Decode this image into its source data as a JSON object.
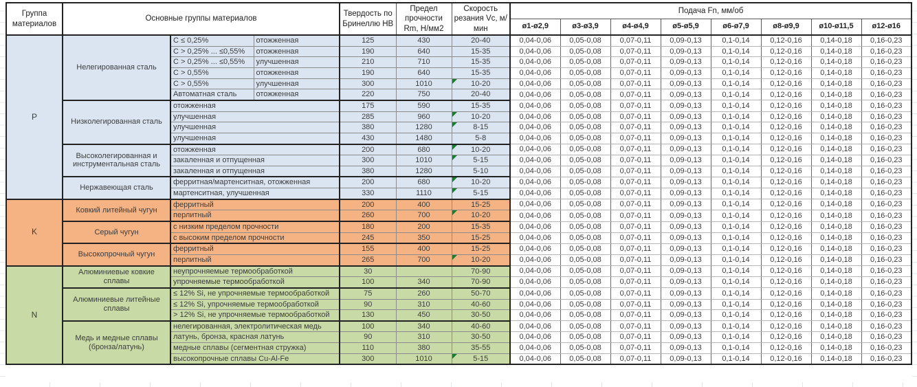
{
  "colors": {
    "group_p": "#dbe5f1",
    "group_k": "#f5b283",
    "group_n": "#c8daa5",
    "flag_triangle": "#1e7b34"
  },
  "header": {
    "col_group": "Группа материалов",
    "col_main_groups": "Основные группы материалов",
    "col_hardness": "Твердость по Бринеллю HB",
    "col_strength": "Предел прочности Rm, Н/мм2",
    "col_speed": "Скорость резания Vc, м/мин",
    "col_feed": "Подача Fn, мм/об",
    "feed_diameters": [
      "ø1-ø2,9",
      "ø3-ø3,9",
      "ø4-ø4,9",
      "ø5-ø5,9",
      "ø6-ø7,9",
      "ø8-ø9,9",
      "ø10-ø11,5",
      "ø12-ø16"
    ]
  },
  "feed_values": [
    "0,04-0,06",
    "0,05-0,08",
    "0,07-0,11",
    "0,09-0,13",
    "0,1-0,14",
    "0,12-0,16",
    "0,14-0,18",
    "0,16-0,23"
  ],
  "groups": [
    {
      "code": "P",
      "subgroups": [
        {
          "name": "Нелегированная сталь"
        },
        {
          "name": "Низколегированная сталь"
        },
        {
          "name": "Высоколегированная и инструментальная сталь"
        },
        {
          "name": "Нержавеющая сталь"
        }
      ]
    },
    {
      "code": "K",
      "subgroups": [
        {
          "name": "Ковкий литейный чугун"
        },
        {
          "name": "Серый чугун"
        },
        {
          "name": "Высокопрочный чугун"
        }
      ]
    },
    {
      "code": "N",
      "subgroups": [
        {
          "name": "Алюминиевые ковкие сплавы"
        },
        {
          "name": "Алюминиевые литейные сплавы"
        },
        {
          "name": "Медь и медные сплавы (бронза/латунь)"
        }
      ]
    }
  ],
  "rows": [
    {
      "c1": "C ≤ 0,25%",
      "c2": "отожженная",
      "hb": "125",
      "rm": "430",
      "vc": "20-40",
      "flag": false
    },
    {
      "c1": "C > 0,25% ... ≤0,55%",
      "c2": "отожженная",
      "hb": "190",
      "rm": "640",
      "vc": "15-35",
      "flag": false
    },
    {
      "c1": "C > 0,25% ... ≤0,55%",
      "c2": "улучшенная",
      "hb": "210",
      "rm": "710",
      "vc": "15-35",
      "flag": false
    },
    {
      "c1": "C > 0,55%",
      "c2": "отожженная",
      "hb": "190",
      "rm": "640",
      "vc": "15-35",
      "flag": false
    },
    {
      "c1": "C > 0,55%",
      "c2": "улучшенная",
      "hb": "300",
      "rm": "1010",
      "vc": "10-20",
      "flag": true
    },
    {
      "c1": "Автоматная сталь",
      "c2": "отожженная",
      "hb": "220",
      "rm": "750",
      "vc": "20-40",
      "flag": false
    },
    {
      "desc": "отожженная",
      "hb": "175",
      "rm": "590",
      "vc": "15-35",
      "flag": false
    },
    {
      "desc": "улучшенная",
      "hb": "285",
      "rm": "960",
      "vc": "10-20",
      "flag": true
    },
    {
      "desc": "улучшенная",
      "hb": "380",
      "rm": "1280",
      "vc": "8-15",
      "flag": true
    },
    {
      "desc": "улучшенная",
      "hb": "430",
      "rm": "1480",
      "vc": "5-8",
      "flag": false
    },
    {
      "desc": "отожженная",
      "hb": "200",
      "rm": "680",
      "vc": "10-20",
      "flag": true
    },
    {
      "desc": "закаленная и отпущенная",
      "hb": "300",
      "rm": "1010",
      "vc": "5-15",
      "flag": true
    },
    {
      "desc": "закаленная и отпущенная",
      "hb": "380",
      "rm": "1280",
      "vc": "5-10",
      "flag": false
    },
    {
      "desc": "ферритная/мартенситная, отожженная",
      "hb": "200",
      "rm": "680",
      "vc": "10-20",
      "flag": true
    },
    {
      "desc": "мартенситная, улучшенная",
      "hb": "330",
      "rm": "1110",
      "vc": "5-15",
      "flag": true
    },
    {
      "desc": "ферритный",
      "hb": "200",
      "rm": "400",
      "vc": "15-25",
      "flag": false
    },
    {
      "desc": "перлитный",
      "hb": "260",
      "rm": "700",
      "vc": "10-20",
      "flag": true
    },
    {
      "desc": "с низким пределом прочности",
      "hb": "180",
      "rm": "200",
      "vc": "15-35",
      "flag": false
    },
    {
      "desc": "с высоким пределом прочности",
      "hb": "245",
      "rm": "350",
      "vc": "15-25",
      "flag": false
    },
    {
      "desc": "ферритный",
      "hb": "155",
      "rm": "400",
      "vc": "15-25",
      "flag": false
    },
    {
      "desc": "перлитный",
      "hb": "265",
      "rm": "700",
      "vc": "10-20",
      "flag": true
    },
    {
      "desc": "неупрочняемые термообработкой",
      "hb": "30",
      "rm": "",
      "vc": "70-90",
      "flag": false
    },
    {
      "desc": "упрочняемые термообработкой",
      "hb": "100",
      "rm": "340",
      "vc": "70-90",
      "flag": false
    },
    {
      "desc": "≤ 12% Si, не упрочняемые термообработкой",
      "hb": "75",
      "rm": "260",
      "vc": "50-70",
      "flag": false
    },
    {
      "desc": "≤ 12% Si, упрочняемые термообработкой",
      "hb": "90",
      "rm": "310",
      "vc": "40-60",
      "flag": false
    },
    {
      "desc": "> 12% Si, не упрочняемые термообработкой",
      "hb": "130",
      "rm": "450",
      "vc": "30-50",
      "flag": false
    },
    {
      "desc": "нелегированная, электролитическая медь",
      "hb": "100",
      "rm": "340",
      "vc": "40-60",
      "flag": false
    },
    {
      "desc": "латунь, бронза, красная латунь",
      "hb": "90",
      "rm": "310",
      "vc": "30-50",
      "flag": false
    },
    {
      "desc": "медные сплавы (сегментная стружка)",
      "hb": "110",
      "rm": "380",
      "vc": "35-55",
      "flag": false
    },
    {
      "desc": "высокопрочные сплавы Cu-Al-Fe",
      "hb": "300",
      "rm": "1010",
      "vc": "5-15",
      "flag": true
    }
  ]
}
